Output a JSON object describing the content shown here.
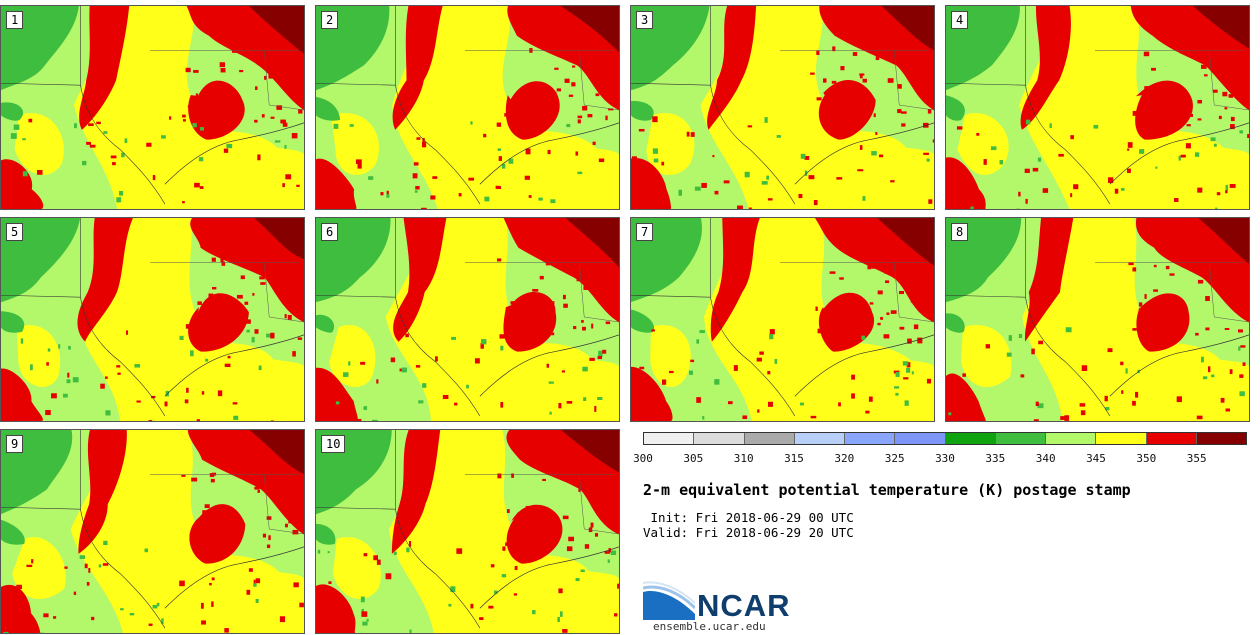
{
  "stamps": [
    {
      "label": "1"
    },
    {
      "label": "2"
    },
    {
      "label": "3"
    },
    {
      "label": "4"
    },
    {
      "label": "5"
    },
    {
      "label": "6"
    },
    {
      "label": "7"
    },
    {
      "label": "8"
    },
    {
      "label": "9"
    },
    {
      "label": "10"
    }
  ],
  "colorbar": {
    "ticks": [
      "300",
      "305",
      "310",
      "315",
      "320",
      "325",
      "330",
      "335",
      "340",
      "345",
      "350",
      "355"
    ],
    "colors": [
      "#f0f0f0",
      "#dcdcdc",
      "#aaaaaa",
      "#b8cff7",
      "#8aa6fa",
      "#7d96f8",
      "#0fa30f",
      "#3fbd3f",
      "#b3f76a",
      "#ffff1a",
      "#e60000",
      "#870000"
    ]
  },
  "title": "2-m equivalent potential temperature (K) postage stamp",
  "init": " Init: Fri 2018-06-29 00 UTC",
  "valid": "Valid: Fri 2018-06-29 20 UTC",
  "logo": {
    "text": "NCAR",
    "url": "ensemble.ucar.edu"
  },
  "map_colors": {
    "green_dark": "#0fa30f",
    "green": "#3fbd3f",
    "light_green": "#b3f76a",
    "yellow": "#ffff1a",
    "red": "#e60000",
    "dark_red": "#870000"
  }
}
